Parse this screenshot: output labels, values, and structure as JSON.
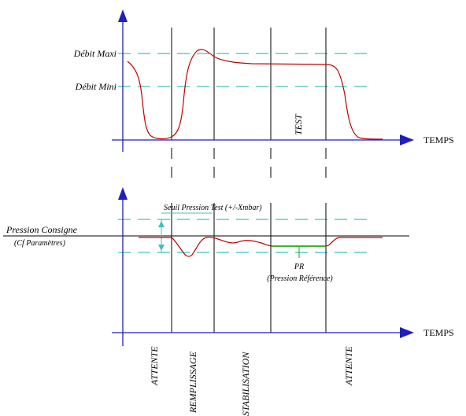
{
  "top_chart": {
    "y_labels": {
      "max": "Débit Maxi",
      "min": "Débit Mini"
    },
    "x_axis_label": "TEMPS",
    "phase_label": "TEST"
  },
  "bottom_chart": {
    "pressure_setpoint": "Pression Consigne",
    "pressure_setpoint_note": "(Cf Paramètres)",
    "threshold_label": "Seuil Pression Test (+/-Xmbar)",
    "pr_label": "PR",
    "pr_note": "(Pression Référence)",
    "x_axis_label": "TEMPS"
  },
  "phases": [
    "ATTENTE",
    "REMPLISSAGE",
    "STABILISATION",
    "ATTENTE"
  ],
  "colors": {
    "axis": "#1f1fbf",
    "threshold_dashed": "#40c0c0",
    "flow_curve": "#c00000",
    "pr_line": "#00b000",
    "guide_lines": "#000000"
  }
}
